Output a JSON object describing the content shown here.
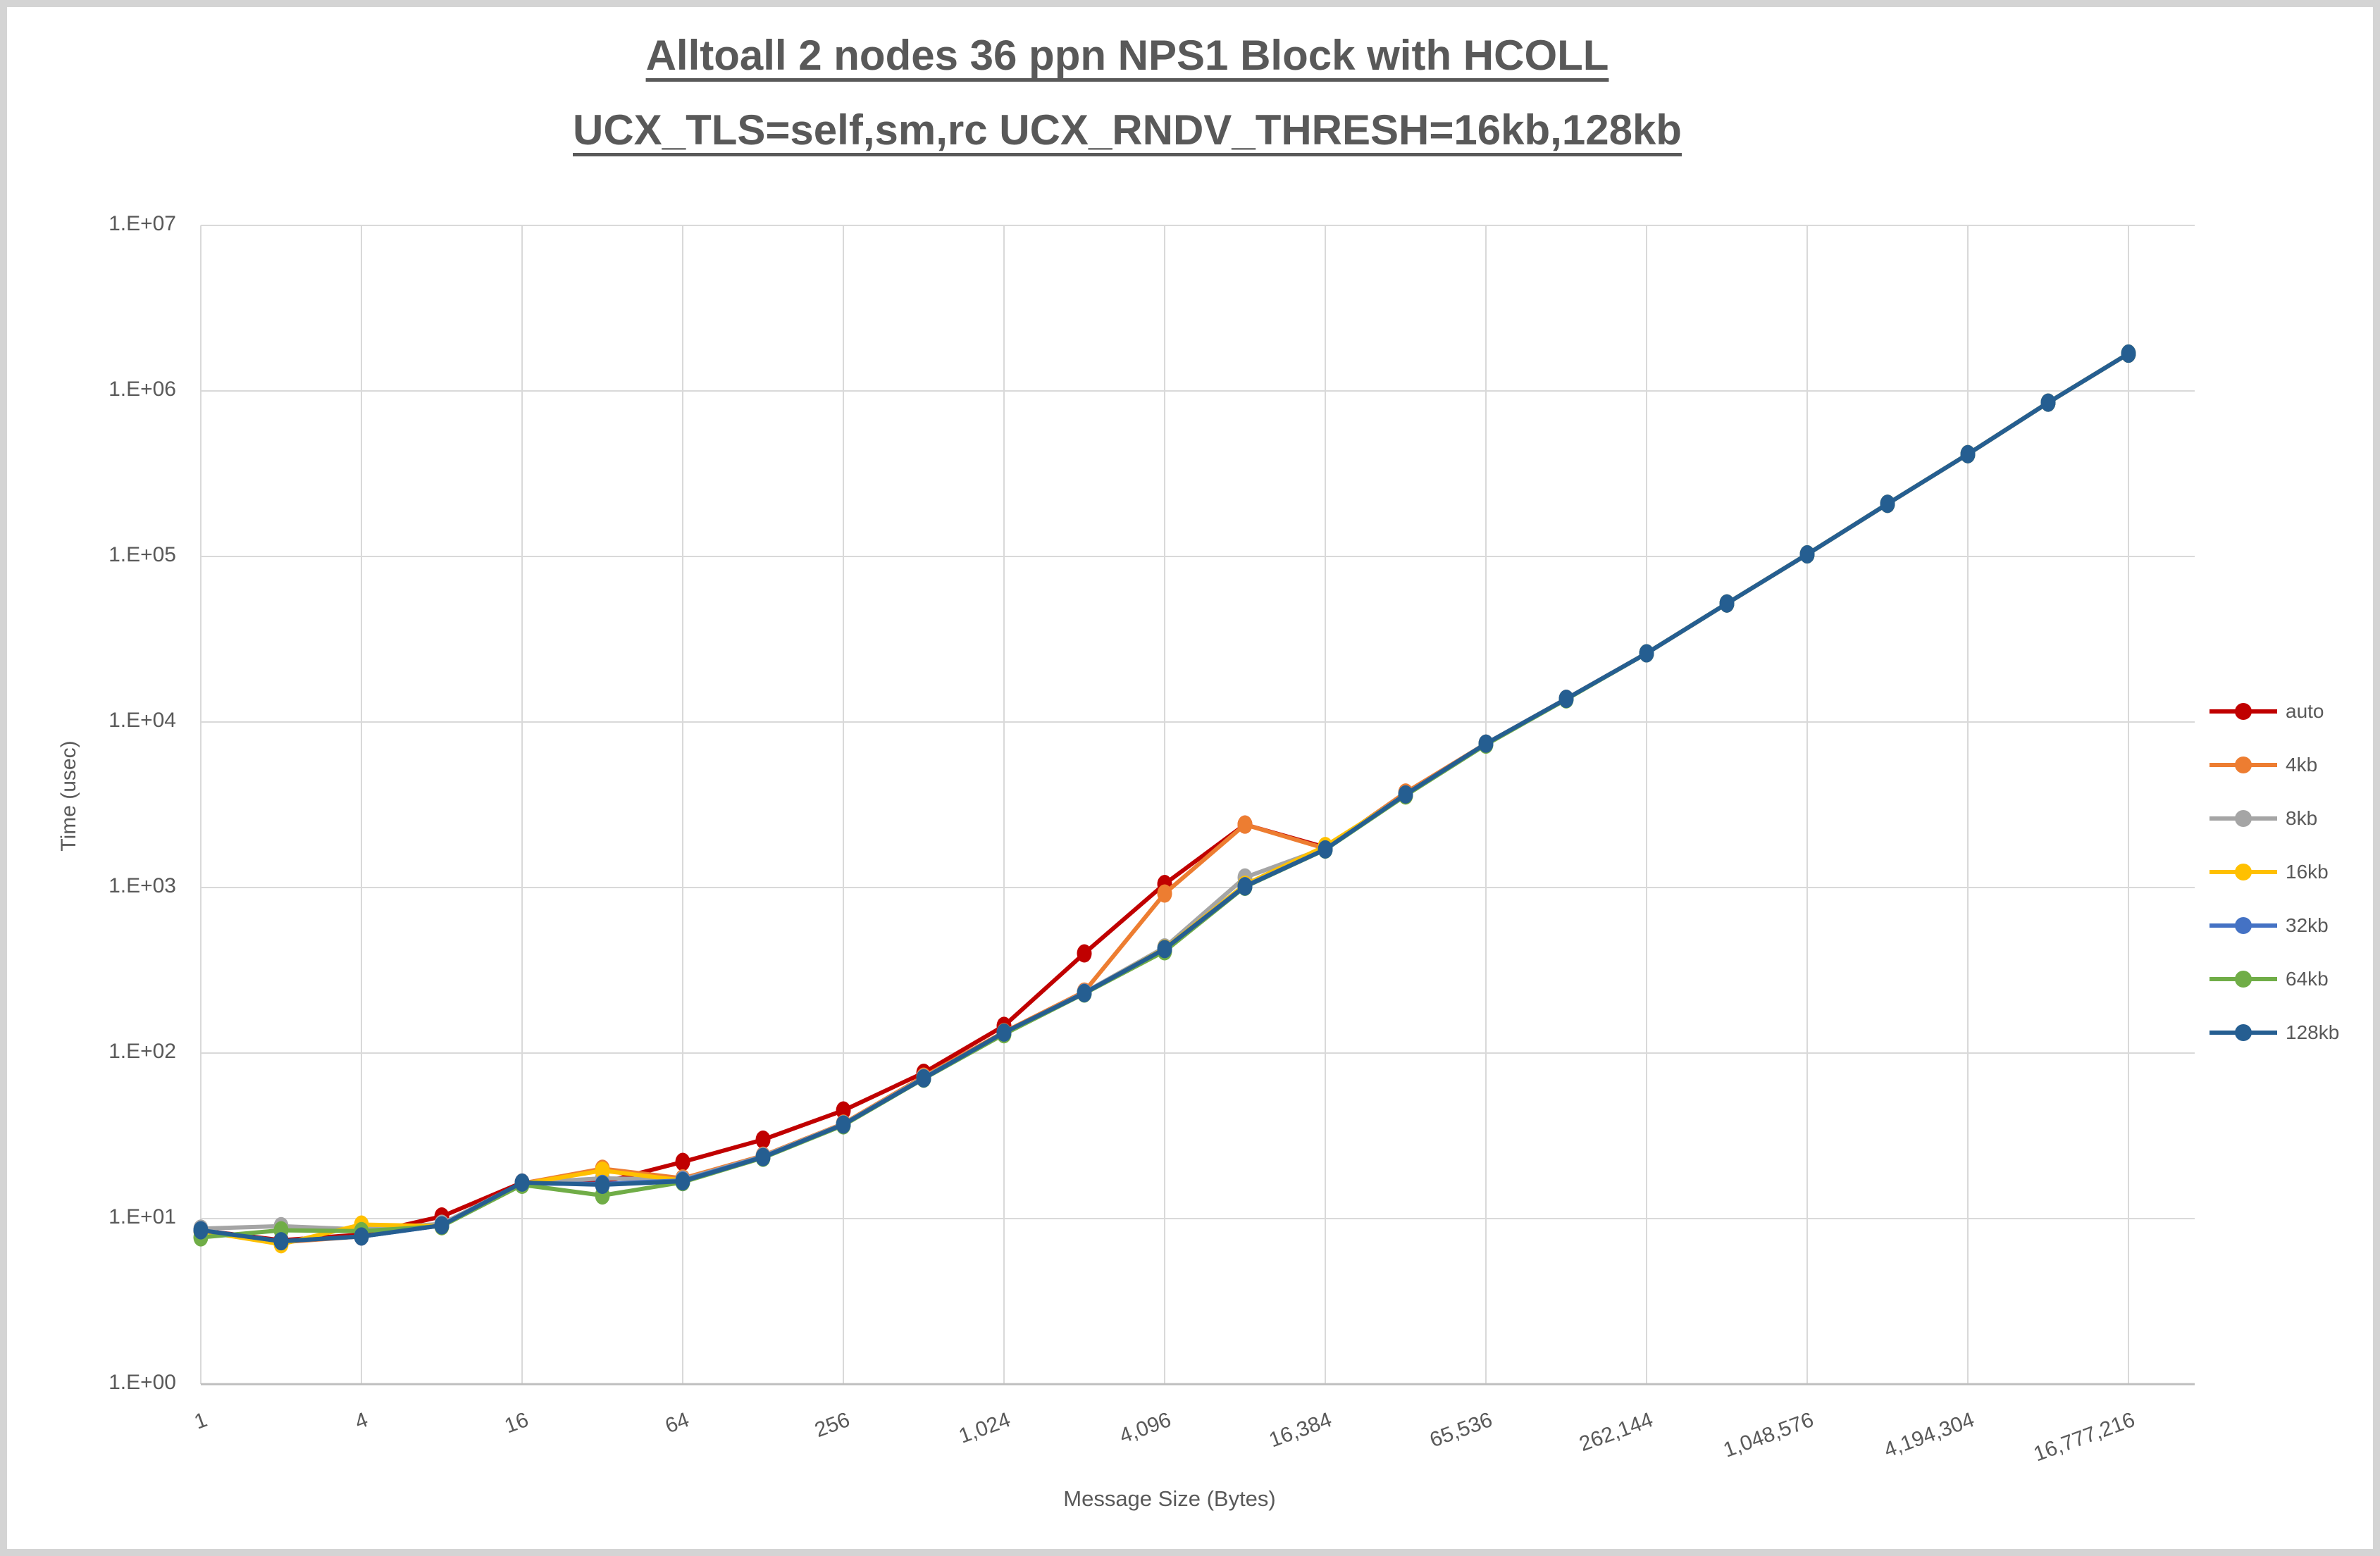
{
  "title": {
    "line1": "Alltoall 2 nodes 36 ppn NPS1 Block with HCOLL",
    "line2": "UCX_TLS=self,sm,rc UCX_RNDV_THRESH=16kb,128kb"
  },
  "axes": {
    "y": {
      "label": "Time (usec)",
      "ticks": [
        "1.E+00",
        "1.E+01",
        "1.E+02",
        "1.E+03",
        "1.E+04",
        "1.E+05",
        "1.E+06",
        "1.E+07"
      ]
    },
    "x": {
      "label": "Message Size (Bytes)",
      "ticks": [
        "1",
        "4",
        "16",
        "64",
        "256",
        "1,024",
        "4,096",
        "16,384",
        "65,536",
        "262,144",
        "1,048,576",
        "4,194,304",
        "16,777,216"
      ]
    }
  },
  "legend": {
    "entries": [
      {
        "label": "auto",
        "color": "#C00000"
      },
      {
        "label": "4kb",
        "color": "#ED7D31"
      },
      {
        "label": "8kb",
        "color": "#A5A5A5"
      },
      {
        "label": "16kb",
        "color": "#FFC000"
      },
      {
        "label": "32kb",
        "color": "#4472C4"
      },
      {
        "label": "64kb",
        "color": "#70AD47"
      },
      {
        "label": "128kb",
        "color": "#255E91"
      }
    ]
  },
  "colors": {
    "gridline": "#D9D9D9",
    "axis_line": "#BFBFBF",
    "text": "#595959"
  },
  "chart_data": {
    "type": "line",
    "title": "Alltoall 2 nodes 36 ppn NPS1 Block with HCOLL UCX_TLS=self,sm,rc UCX_RNDV_THRESH=16kb,128kb",
    "xlabel": "Message Size (Bytes)",
    "ylabel": "Time (usec)",
    "x_scale": "log2",
    "y_scale": "log10",
    "ylim": [
      1,
      10000000
    ],
    "grid": true,
    "legend_position": "right",
    "x": [
      1,
      2,
      4,
      8,
      16,
      32,
      64,
      128,
      256,
      512,
      1024,
      2048,
      4096,
      8192,
      16384,
      32768,
      65536,
      131072,
      262144,
      524288,
      1048576,
      2097152,
      4194304,
      8388608,
      16777216
    ],
    "series": [
      {
        "name": "auto",
        "color": "#C00000",
        "values": [
          8.5,
          7.4,
          8.0,
          10.3,
          16.5,
          16.5,
          22,
          30,
          45,
          76,
          146,
          400,
          1050,
          2400,
          1750,
          3650,
          7400,
          13800,
          26000,
          52000,
          103000,
          208000,
          415000,
          850000,
          1680000
        ]
      },
      {
        "name": "4kb",
        "color": "#ED7D31",
        "values": [
          8.5,
          7.2,
          7.8,
          9.2,
          16.3,
          20,
          17.5,
          24,
          37.5,
          72,
          134,
          235,
          920,
          2400,
          1720,
          3750,
          7400,
          13800,
          26000,
          52000,
          103000,
          208000,
          415000,
          850000,
          1680000
        ]
      },
      {
        "name": "8kb",
        "color": "#A5A5A5",
        "values": [
          8.7,
          9.0,
          8.6,
          9.3,
          16.4,
          17.5,
          17.2,
          23.8,
          37.2,
          71,
          132,
          232,
          435,
          1150,
          1730,
          3650,
          7400,
          13800,
          26000,
          52000,
          103000,
          208000,
          415000,
          850000,
          1680000
        ]
      },
      {
        "name": "16kb",
        "color": "#FFC000",
        "values": [
          8.4,
          7.0,
          9.2,
          9.0,
          16.2,
          19.5,
          17.0,
          23.5,
          37.0,
          70.5,
          131,
          230,
          428,
          1040,
          1780,
          3600,
          7400,
          13800,
          26000,
          52000,
          103000,
          208000,
          415000,
          850000,
          1680000
        ]
      },
      {
        "name": "32kb",
        "color": "#4472C4",
        "values": [
          8.5,
          7.3,
          7.8,
          9.1,
          16.3,
          16.2,
          17.0,
          23.6,
          37.0,
          70.5,
          132,
          231,
          425,
          1020,
          1700,
          3650,
          7400,
          13800,
          26000,
          52000,
          103000,
          208000,
          415000,
          850000,
          1680000
        ]
      },
      {
        "name": "64kb",
        "color": "#70AD47",
        "values": [
          7.7,
          8.5,
          8.4,
          9.0,
          16.0,
          13.8,
          16.6,
          23.3,
          36.6,
          70,
          130,
          229,
          412,
          1010,
          1695,
          3600,
          7300,
          13700,
          26000,
          52000,
          103000,
          208000,
          415000,
          850000,
          1680000
        ]
      },
      {
        "name": "128kb",
        "color": "#255E91",
        "values": [
          8.5,
          7.3,
          7.8,
          9.1,
          16.5,
          16.0,
          16.8,
          23.5,
          37.0,
          70.3,
          133,
          230,
          425,
          1015,
          1700,
          3650,
          7400,
          13800,
          26000,
          52000,
          103000,
          208000,
          415000,
          850000,
          1680000
        ]
      }
    ]
  }
}
